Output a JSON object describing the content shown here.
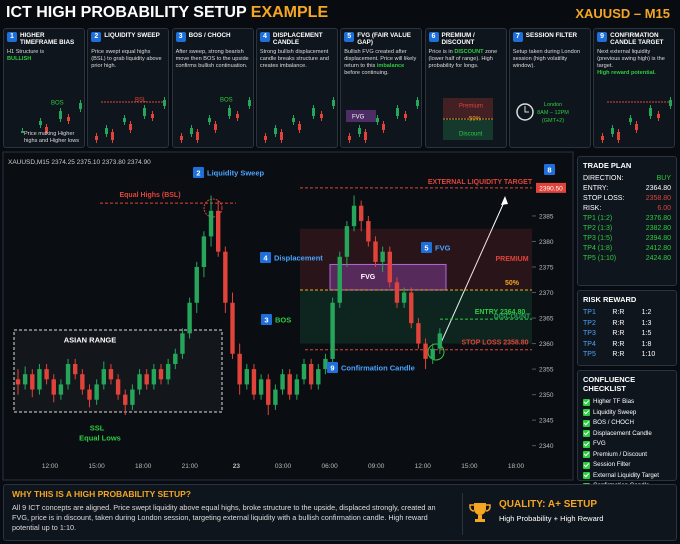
{
  "header": {
    "title": "ICT HIGH PROBABILITY SETUP",
    "title_accent": "EXAMPLE",
    "symbol": "XAUUSD – M15"
  },
  "panels": [
    {
      "num": "1",
      "title": "HIGHER TIMEFRAME BIAS",
      "lines": [
        "H1 Structure is"
      ],
      "highlight": "BULLISH",
      "mini": "BOS",
      "note": "Price making Higher highs and Higher lows"
    },
    {
      "num": "2",
      "title": "LIQUIDITY SWEEP",
      "lines": [
        "Price swept equal highs (BSL) to grab liquidity above prior high."
      ],
      "mini": "BSL"
    },
    {
      "num": "3",
      "title": "BOS / CHOCH",
      "lines": [
        "After sweep, strong bearish move then BOS to the upside confirms bullish continuation."
      ],
      "mini": "BOS"
    },
    {
      "num": "4",
      "title": "DISPLACEMENT CANDLE",
      "lines": [
        "Strong bullish displacement candle breaks structure and creates imbalance."
      ]
    },
    {
      "num": "5",
      "title": "FVG (FAIR VALUE GAP)",
      "lines": [
        "Bullish FVG created after displacement. Price will likely return to this"
      ],
      "highlight": "imbalance",
      "after": "before continuing.",
      "mini": "FVG"
    },
    {
      "num": "6",
      "title": "PREMIUM / DISCOUNT",
      "lines": [
        "Price is in"
      ],
      "highlight": "DISCOUNT",
      "after": "zone (lower half of range). High probability for longs.",
      "mini_labels": [
        "Premium",
        "50%",
        "Discount"
      ]
    },
    {
      "num": "7",
      "title": "SESSION FILTER",
      "lines": [
        "Setup taken during London session (high volatility window)."
      ],
      "mini_labels": [
        "London",
        "8AM – 12PM",
        "(GMT+2)"
      ]
    },
    {
      "num": "9",
      "title": "CONFIRMATION CANDLE TARGET",
      "lines": [
        "Next external liquidity (previous swing high) is the target."
      ],
      "highlight": "High reward potential."
    }
  ],
  "chart_data": {
    "type": "candlestick",
    "title": "XAUUSD,M15 2374.25 2375.10 2373.80 2374.90",
    "up_color": "#26a65b",
    "down_color": "#e0433a",
    "ylim": [
      2337,
      2394
    ],
    "yticks": [
      2340,
      2345,
      2350,
      2355,
      2360,
      2365,
      2370,
      2375,
      2380,
      2385
    ],
    "time_labels": [
      "12:00",
      "15:00",
      "18:00",
      "21:00",
      "23",
      "03:00",
      "06:00",
      "09:00",
      "12:00",
      "15:00",
      "18:00"
    ],
    "candles": [
      [
        2353,
        2355,
        2350,
        2352
      ],
      [
        2352,
        2355.5,
        2351,
        2354
      ],
      [
        2354,
        2355,
        2349.5,
        2351
      ],
      [
        2351,
        2356,
        2350,
        2355
      ],
      [
        2355,
        2356,
        2352,
        2353
      ],
      [
        2353,
        2354,
        2348.5,
        2350
      ],
      [
        2350,
        2353,
        2349,
        2352
      ],
      [
        2352,
        2357,
        2351,
        2356
      ],
      [
        2356,
        2357,
        2353,
        2354
      ],
      [
        2354,
        2355,
        2350,
        2351
      ],
      [
        2351,
        2352,
        2347.5,
        2349
      ],
      [
        2349,
        2353,
        2348,
        2352
      ],
      [
        2352,
        2356.5,
        2351,
        2355
      ],
      [
        2355,
        2356,
        2352,
        2353
      ],
      [
        2353,
        2354,
        2349,
        2350
      ],
      [
        2350,
        2351,
        2346,
        2348
      ],
      [
        2348,
        2352,
        2347,
        2351
      ],
      [
        2351,
        2355,
        2350,
        2354
      ],
      [
        2354,
        2355,
        2351,
        2352
      ],
      [
        2352,
        2356,
        2351,
        2355
      ],
      [
        2355,
        2356,
        2352,
        2353
      ],
      [
        2353,
        2357,
        2352,
        2356
      ],
      [
        2356,
        2359,
        2355,
        2358
      ],
      [
        2358,
        2363,
        2357,
        2362
      ],
      [
        2362,
        2369,
        2361,
        2368
      ],
      [
        2368,
        2376,
        2366,
        2375
      ],
      [
        2375,
        2382,
        2373,
        2381
      ],
      [
        2381,
        2389,
        2379,
        2386
      ],
      [
        2386,
        2388,
        2377,
        2378
      ],
      [
        2378,
        2379,
        2366,
        2368
      ],
      [
        2368,
        2370,
        2357,
        2358
      ],
      [
        2358,
        2360,
        2350,
        2352
      ],
      [
        2352,
        2356,
        2351,
        2355
      ],
      [
        2355,
        2356,
        2349,
        2350
      ],
      [
        2350,
        2354,
        2349,
        2353
      ],
      [
        2353,
        2354,
        2346,
        2348
      ],
      [
        2348,
        2352,
        2347,
        2351
      ],
      [
        2351,
        2355,
        2350,
        2354
      ],
      [
        2354,
        2355,
        2349,
        2350
      ],
      [
        2350,
        2354,
        2349,
        2353
      ],
      [
        2353,
        2357,
        2352,
        2356
      ],
      [
        2356,
        2357,
        2351,
        2352
      ],
      [
        2352,
        2356,
        2351,
        2355
      ],
      [
        2355,
        2358,
        2354,
        2357
      ],
      [
        2357,
        2369,
        2356,
        2368
      ],
      [
        2368,
        2378,
        2367,
        2377
      ],
      [
        2377,
        2384,
        2375,
        2383
      ],
      [
        2383,
        2389,
        2382,
        2387
      ],
      [
        2387,
        2388,
        2382,
        2384
      ],
      [
        2384,
        2385,
        2379,
        2380
      ],
      [
        2380,
        2381,
        2375,
        2376
      ],
      [
        2376,
        2379,
        2374,
        2378
      ],
      [
        2378,
        2379,
        2371,
        2372
      ],
      [
        2372,
        2373,
        2367,
        2368
      ],
      [
        2368,
        2371,
        2367,
        2370
      ],
      [
        2370,
        2371,
        2363,
        2364
      ],
      [
        2364,
        2365,
        2359,
        2360
      ],
      [
        2360,
        2361,
        2355,
        2357
      ],
      [
        2357,
        2360,
        2356,
        2359
      ],
      [
        2359,
        2363,
        2358,
        2362
      ]
    ],
    "zones": [
      {
        "label": "PREMIUM",
        "from": 2370.5,
        "to": 2382.5,
        "color": "#e0433a"
      },
      {
        "label": "DISCOUNT",
        "from": 2360,
        "to": 2370.5,
        "color": "#26a65b"
      },
      {
        "label": "FVG",
        "from": 2370.5,
        "to": 2375.5,
        "color": "#8e44ad"
      }
    ],
    "levels": [
      {
        "label": "EXTERNAL LIQUIDITY TARGET",
        "tag": "2390.50",
        "value": 2390.5,
        "color": "#e0433a"
      },
      {
        "label": "Equal Highs (BSL)",
        "value": 2387.5,
        "color": "#e0433a"
      },
      {
        "label": "50%",
        "value": 2370.5,
        "color": "#f5a623"
      },
      {
        "label": "ENTRY 2364.80",
        "value": 2364.8,
        "color": "#2ecc40"
      },
      {
        "label": "STOP LOSS 2358.80",
        "value": 2358.8,
        "color": "#e0433a"
      }
    ],
    "annotations": [
      {
        "badge": "2",
        "text": "Liquidity Sweep"
      },
      {
        "badge": "4",
        "text": "Displacement"
      },
      {
        "badge": "5",
        "text": "FVG"
      },
      {
        "badge": "3",
        "text": "BOS"
      },
      {
        "badge": "9",
        "text": "Confirmation Candle"
      },
      {
        "badge": "8"
      },
      {
        "text": "ASIAN RANGE"
      },
      {
        "text": "SSL"
      },
      {
        "text": "Equal Lows"
      }
    ]
  },
  "trade_plan": {
    "title": "TRADE PLAN",
    "rows": [
      [
        "DIRECTION:",
        "BUY"
      ],
      [
        "ENTRY:",
        "2364.80"
      ],
      [
        "STOP LOSS:",
        "2358.80"
      ],
      [
        "RISK:",
        "6.00"
      ],
      [
        "TP1 (1:2)",
        "2376.80"
      ],
      [
        "TP2 (1:3)",
        "2382.80"
      ],
      [
        "TP3 (1:5)",
        "2394.80"
      ],
      [
        "TP4 (1:8)",
        "2412.80"
      ],
      [
        "TP5 (1:10)",
        "2424.80"
      ]
    ]
  },
  "risk_reward": {
    "title": "RISK REWARD",
    "rows": [
      [
        "TP1",
        "R:R",
        "1:2"
      ],
      [
        "TP2",
        "R:R",
        "1:3"
      ],
      [
        "TP3",
        "R:R",
        "1:5"
      ],
      [
        "TP4",
        "R:R",
        "1:8"
      ],
      [
        "TP5",
        "R:R",
        "1:10"
      ]
    ]
  },
  "checklist": {
    "title": "CONFLUENCE CHECKLIST",
    "items": [
      "Higher TF Bias",
      "Liquidity Sweep",
      "BOS / CHOCH",
      "Displacement Candle",
      "FVG",
      "Premium / Discount",
      "Session Filter",
      "External Liquidity Target",
      "Confirmation Candle"
    ]
  },
  "footer": {
    "title": "WHY THIS IS A HIGH PROBABILITY SETUP?",
    "text": "All 9 ICT concepts are aligned. Price swept liquidity above equal highs, broke structure to the upside, displaced strongly, created an FVG, price is in discount, taken during London session, targeting external liquidity with a bullish confirmation candle. High reward potential up to 1:10.",
    "quality": "QUALITY: A+ SETUP",
    "quality_sub": "High Probability + High Reward"
  }
}
